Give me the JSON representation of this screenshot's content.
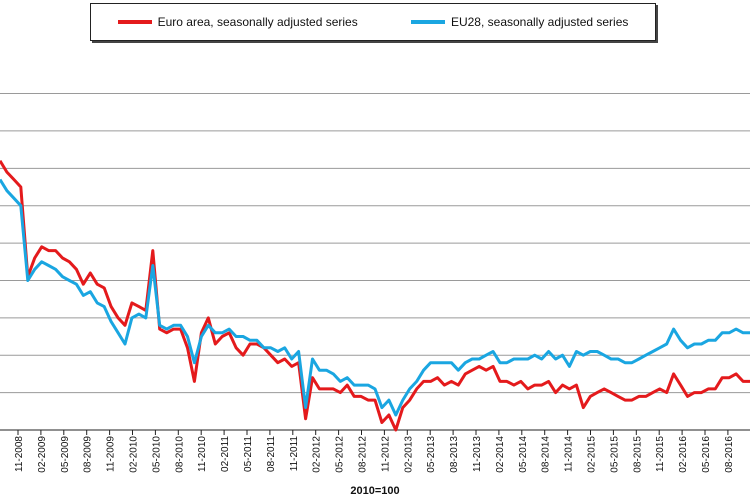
{
  "chart_data": {
    "type": "line",
    "xlabel": "2010=100",
    "ylabel": "",
    "grid": true,
    "legend_placement": "top",
    "tick_labels": [
      "11-2008",
      "02-2009",
      "05-2009",
      "08-2009",
      "11-2009",
      "02-2010",
      "05-2010",
      "08-2010",
      "11-2010",
      "02-2011",
      "05-2011",
      "08-2011",
      "11-2011",
      "02-2012",
      "05-2012",
      "08-2012",
      "11-2012",
      "02-2013",
      "05-2013",
      "08-2013",
      "11-2013",
      "02-2014",
      "05-2014",
      "08-2014",
      "11-2014",
      "02-2015",
      "05-2015",
      "08-2015",
      "11-2015",
      "02-2016",
      "05-2016",
      "08-2016"
    ],
    "ylim": [
      0,
      10.7
    ],
    "series": [
      {
        "name": "Euro area, seasonally adjusted series",
        "color": "#e41a1c",
        "values": [
          7.2,
          6.9,
          6.7,
          6.5,
          4.1,
          4.6,
          4.9,
          4.8,
          4.8,
          4.6,
          4.5,
          4.3,
          3.9,
          4.2,
          3.9,
          3.8,
          3.3,
          3.0,
          2.8,
          3.4,
          3.3,
          3.2,
          4.8,
          2.7,
          2.6,
          2.7,
          2.7,
          2.2,
          1.3,
          2.6,
          3.0,
          2.3,
          2.5,
          2.6,
          2.2,
          2.0,
          2.3,
          2.3,
          2.2,
          2.0,
          1.8,
          1.9,
          1.7,
          1.8,
          0.3,
          1.4,
          1.1,
          1.1,
          1.1,
          1.0,
          1.2,
          0.9,
          0.9,
          0.8,
          0.8,
          0.2,
          0.4,
          0.0,
          0.6,
          0.8,
          1.1,
          1.3,
          1.3,
          1.4,
          1.2,
          1.3,
          1.2,
          1.5,
          1.6,
          1.7,
          1.6,
          1.7,
          1.3,
          1.3,
          1.2,
          1.3,
          1.1,
          1.2,
          1.2,
          1.3,
          1.0,
          1.2,
          1.1,
          1.2,
          0.6,
          0.9,
          1.0,
          1.1,
          1.0,
          0.9,
          0.8,
          0.8,
          0.9,
          0.9,
          1.0,
          1.1,
          1.0,
          1.5,
          1.2,
          0.9,
          1.0,
          1.0,
          1.1,
          1.1,
          1.4,
          1.4,
          1.5,
          1.3,
          1.3
        ]
      },
      {
        "name": "EU28, seasonally adjusted series",
        "color": "#1aa6e1",
        "values": [
          6.7,
          6.4,
          6.2,
          6.0,
          4.0,
          4.3,
          4.5,
          4.4,
          4.3,
          4.1,
          4.0,
          3.9,
          3.6,
          3.7,
          3.4,
          3.3,
          2.9,
          2.6,
          2.3,
          3.0,
          3.1,
          3.0,
          4.4,
          2.8,
          2.7,
          2.8,
          2.8,
          2.5,
          1.8,
          2.5,
          2.8,
          2.6,
          2.6,
          2.7,
          2.5,
          2.5,
          2.4,
          2.4,
          2.2,
          2.2,
          2.1,
          2.2,
          1.9,
          2.1,
          0.6,
          1.9,
          1.6,
          1.6,
          1.5,
          1.3,
          1.4,
          1.2,
          1.2,
          1.2,
          1.1,
          0.6,
          0.8,
          0.4,
          0.8,
          1.1,
          1.3,
          1.6,
          1.8,
          1.8,
          1.8,
          1.8,
          1.6,
          1.8,
          1.9,
          1.9,
          2.0,
          2.1,
          1.8,
          1.8,
          1.9,
          1.9,
          1.9,
          2.0,
          1.9,
          2.1,
          1.9,
          2.0,
          1.7,
          2.1,
          2.0,
          2.1,
          2.1,
          2.0,
          1.9,
          1.9,
          1.8,
          1.8,
          1.9,
          2.0,
          2.1,
          2.2,
          2.3,
          2.7,
          2.4,
          2.2,
          2.3,
          2.3,
          2.4,
          2.4,
          2.6,
          2.6,
          2.7,
          2.6,
          2.6
        ]
      }
    ]
  }
}
